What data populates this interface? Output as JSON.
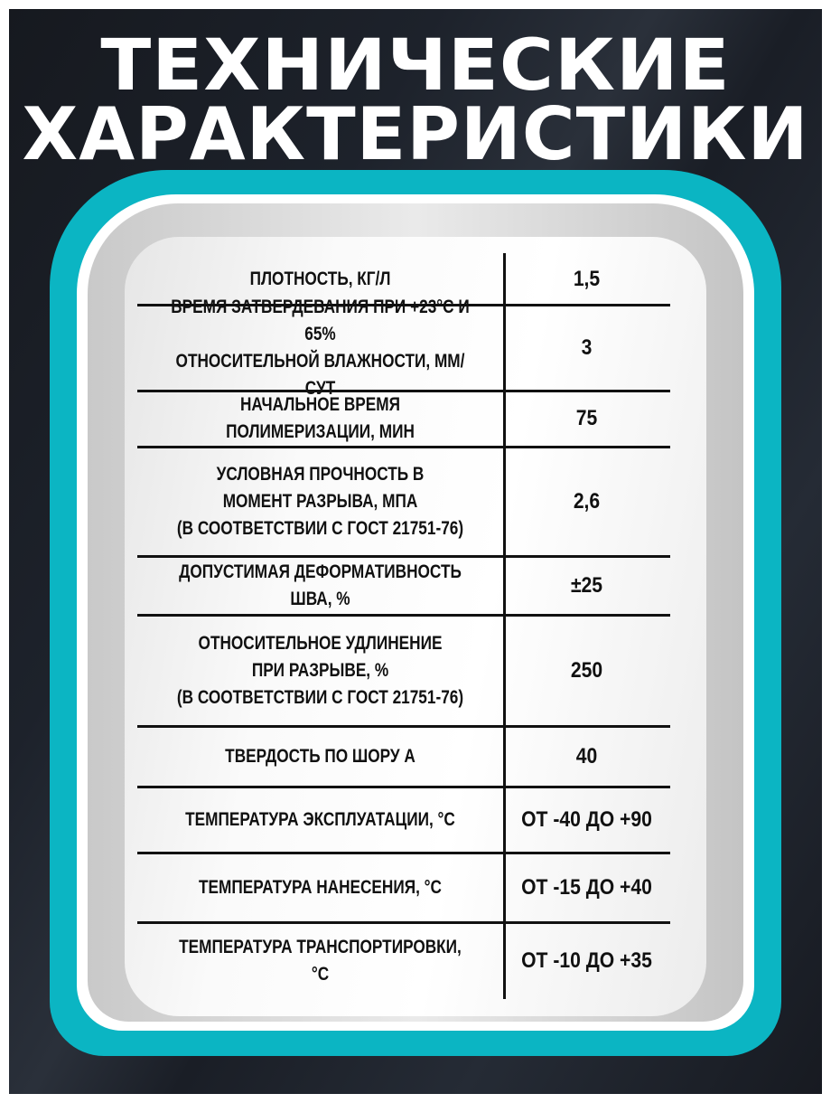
{
  "title": {
    "line1": "ТЕХНИЧЕСКИЕ",
    "line2": "ХАРАКТЕРИСТИКИ"
  },
  "colors": {
    "accent": "#0bb5c3",
    "background": "#1d222b",
    "text": "#111111"
  },
  "specs": [
    {
      "label": "ПЛОТНОСТЬ, КГ/Л",
      "value": "1,5"
    },
    {
      "label": "ВРЕМЯ ЗАТВЕРДЕВАНИЯ ПРИ +23°С  И 65%\nОТНОСИТЕЛЬНОЙ ВЛАЖНОСТИ, ММ/СУТ",
      "value": "3"
    },
    {
      "label": "НАЧАЛЬНОЕ ВРЕМЯ ПОЛИМЕРИЗАЦИИ, МИН",
      "value": "75"
    },
    {
      "label": "УСЛОВНАЯ ПРОЧНОСТЬ В\nМОМЕНТ РАЗРЫВА, МПА\n(В СООТВЕТСТВИИ С ГОСТ 21751-76)",
      "value": "2,6"
    },
    {
      "label": "ДОПУСТИМАЯ ДЕФОРМАТИВНОСТЬ ШВА, %",
      "value": "±25"
    },
    {
      "label": "ОТНОСИТЕЛЬНОЕ УДЛИНЕНИЕ\nПРИ РАЗРЫВЕ, %\n(В СООТВЕТСТВИИ С ГОСТ 21751-76)",
      "value": "250"
    },
    {
      "label": "ТВЕРДОСТЬ ПО ШОРУ А",
      "value": "40"
    },
    {
      "label": "ТЕМПЕРАТУРА ЭКСПЛУАТАЦИИ, °С",
      "value": "ОТ -40 ДО +90"
    },
    {
      "label": "ТЕМПЕРАТУРА НАНЕСЕНИЯ, °С",
      "value": "ОТ -15 ДО +40"
    },
    {
      "label": "ТЕМПЕРАТУРА ТРАНСПОРТИРОВКИ, °С",
      "value": "ОТ -10 ДО +35"
    }
  ]
}
